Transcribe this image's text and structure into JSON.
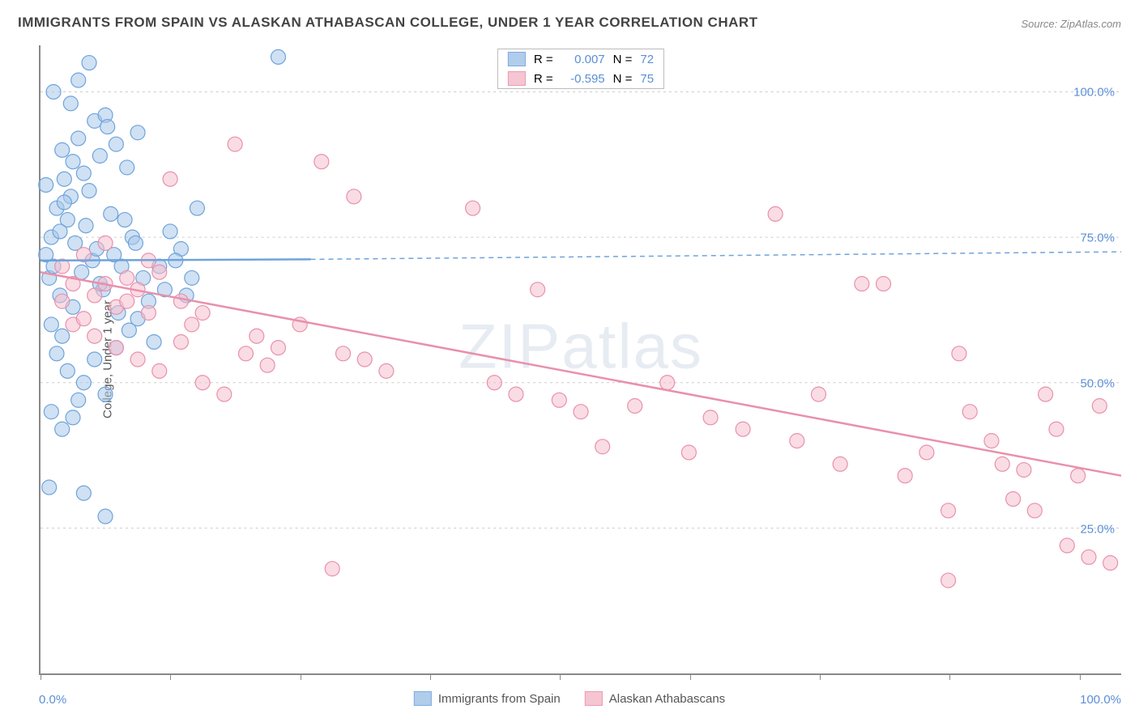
{
  "title": "IMMIGRANTS FROM SPAIN VS ALASKAN ATHABASCAN COLLEGE, UNDER 1 YEAR CORRELATION CHART",
  "source": "Source: ZipAtlas.com",
  "ylabel": "College, Under 1 year",
  "watermark": "ZIPatlas",
  "chart": {
    "type": "scatter",
    "xlim": [
      0,
      100
    ],
    "ylim": [
      0,
      108
    ],
    "xtick_positions": [
      0,
      12,
      24,
      36,
      48,
      60,
      72,
      84,
      96
    ],
    "ytick_labels": [
      "25.0%",
      "50.0%",
      "75.0%",
      "100.0%"
    ],
    "ytick_values": [
      25,
      50,
      75,
      100
    ],
    "x_left_label": "0.0%",
    "x_right_label": "100.0%",
    "gridline_color": "#cccccc",
    "axis_color": "#888888",
    "background_color": "#ffffff",
    "marker_radius": 9,
    "marker_stroke_width": 1.2,
    "trend_line_width": 2.5,
    "trend_dash": "6,5",
    "series": [
      {
        "name": "Immigrants from Spain",
        "label": "Immigrants from Spain",
        "fill": "#a8c8ea",
        "stroke": "#6fa3db",
        "fill_opacity": 0.55,
        "R": "0.007",
        "N": "72",
        "trend": {
          "x1": 0,
          "y1": 71,
          "x2_solid": 25,
          "y2_solid": 71.2,
          "x2": 100,
          "y2": 72.5
        },
        "points": [
          [
            0.5,
            72
          ],
          [
            0.8,
            68
          ],
          [
            1,
            75
          ],
          [
            1.2,
            70
          ],
          [
            1.5,
            80
          ],
          [
            1.8,
            65
          ],
          [
            2,
            90
          ],
          [
            2.2,
            85
          ],
          [
            2.5,
            78
          ],
          [
            2.8,
            82
          ],
          [
            3,
            88
          ],
          [
            3.2,
            74
          ],
          [
            3.5,
            92
          ],
          [
            3.8,
            69
          ],
          [
            4,
            86
          ],
          [
            4.2,
            77
          ],
          [
            4.5,
            105
          ],
          [
            4.8,
            71
          ],
          [
            5,
            95
          ],
          [
            5.2,
            73
          ],
          [
            5.5,
            89
          ],
          [
            5.8,
            66
          ],
          [
            6,
            96
          ],
          [
            6.5,
            79
          ],
          [
            7,
            91
          ],
          [
            7.5,
            70
          ],
          [
            8,
            87
          ],
          [
            8.5,
            75
          ],
          [
            9,
            93
          ],
          [
            9.5,
            68
          ],
          [
            1,
            60
          ],
          [
            1.5,
            55
          ],
          [
            2,
            58
          ],
          [
            2.5,
            52
          ],
          [
            3,
            63
          ],
          [
            3.5,
            47
          ],
          [
            4,
            50
          ],
          [
            5,
            54
          ],
          [
            6,
            48
          ],
          [
            7,
            56
          ],
          [
            1,
            45
          ],
          [
            2,
            42
          ],
          [
            3,
            44
          ],
          [
            0.8,
            32
          ],
          [
            4,
            31
          ],
          [
            6,
            27
          ],
          [
            1.2,
            100
          ],
          [
            2.8,
            98
          ],
          [
            3.5,
            102
          ],
          [
            0.5,
            84
          ],
          [
            1.8,
            76
          ],
          [
            2.2,
            81
          ],
          [
            4.5,
            83
          ],
          [
            5.5,
            67
          ],
          [
            6.8,
            72
          ],
          [
            7.8,
            78
          ],
          [
            8.8,
            74
          ],
          [
            10,
            64
          ],
          [
            11,
            70
          ],
          [
            12,
            76
          ],
          [
            13,
            73
          ],
          [
            14,
            68
          ],
          [
            14.5,
            80
          ],
          [
            9,
            61
          ],
          [
            10.5,
            57
          ],
          [
            11.5,
            66
          ],
          [
            6.2,
            94
          ],
          [
            7.2,
            62
          ],
          [
            8.2,
            59
          ],
          [
            12.5,
            71
          ],
          [
            13.5,
            65
          ],
          [
            22,
            106
          ]
        ]
      },
      {
        "name": "Alaskan Athabascans",
        "label": "Alaskan Athabascans",
        "fill": "#f5c0ce",
        "stroke": "#e990ab",
        "fill_opacity": 0.55,
        "R": "-0.595",
        "N": "75",
        "trend": {
          "x1": 0,
          "y1": 69,
          "x2_solid": 100,
          "y2_solid": 34,
          "x2": 100,
          "y2": 34
        },
        "points": [
          [
            2,
            70
          ],
          [
            3,
            67
          ],
          [
            4,
            72
          ],
          [
            5,
            65
          ],
          [
            6,
            74
          ],
          [
            7,
            63
          ],
          [
            8,
            68
          ],
          [
            9,
            66
          ],
          [
            10,
            71
          ],
          [
            11,
            69
          ],
          [
            12,
            85
          ],
          [
            13,
            64
          ],
          [
            14,
            60
          ],
          [
            15,
            62
          ],
          [
            18,
            91
          ],
          [
            20,
            58
          ],
          [
            22,
            56
          ],
          [
            24,
            60
          ],
          [
            26,
            88
          ],
          [
            28,
            55
          ],
          [
            27,
            18
          ],
          [
            29,
            82
          ],
          [
            30,
            54
          ],
          [
            32,
            52
          ],
          [
            40,
            80
          ],
          [
            42,
            50
          ],
          [
            44,
            48
          ],
          [
            46,
            66
          ],
          [
            48,
            47
          ],
          [
            50,
            45
          ],
          [
            52,
            39
          ],
          [
            55,
            46
          ],
          [
            58,
            50
          ],
          [
            60,
            38
          ],
          [
            62,
            44
          ],
          [
            65,
            42
          ],
          [
            68,
            79
          ],
          [
            70,
            40
          ],
          [
            72,
            48
          ],
          [
            74,
            36
          ],
          [
            76,
            67
          ],
          [
            78,
            67
          ],
          [
            80,
            34
          ],
          [
            82,
            38
          ],
          [
            84,
            28
          ],
          [
            85,
            55
          ],
          [
            86,
            45
          ],
          [
            88,
            40
          ],
          [
            89,
            36
          ],
          [
            90,
            30
          ],
          [
            91,
            35
          ],
          [
            92,
            28
          ],
          [
            93,
            48
          ],
          [
            94,
            42
          ],
          [
            95,
            22
          ],
          [
            96,
            34
          ],
          [
            97,
            20
          ],
          [
            98,
            46
          ],
          [
            99,
            19
          ],
          [
            84,
            16
          ],
          [
            3,
            60
          ],
          [
            5,
            58
          ],
          [
            7,
            56
          ],
          [
            9,
            54
          ],
          [
            11,
            52
          ],
          [
            13,
            57
          ],
          [
            15,
            50
          ],
          [
            17,
            48
          ],
          [
            19,
            55
          ],
          [
            21,
            53
          ],
          [
            6,
            67
          ],
          [
            8,
            64
          ],
          [
            10,
            62
          ],
          [
            4,
            61
          ],
          [
            2,
            64
          ]
        ]
      }
    ]
  },
  "legend_top": {
    "r_label": "R =",
    "n_label": "N ="
  },
  "colors": {
    "stat_value": "#5b8fd6",
    "stat_label": "#555555"
  }
}
